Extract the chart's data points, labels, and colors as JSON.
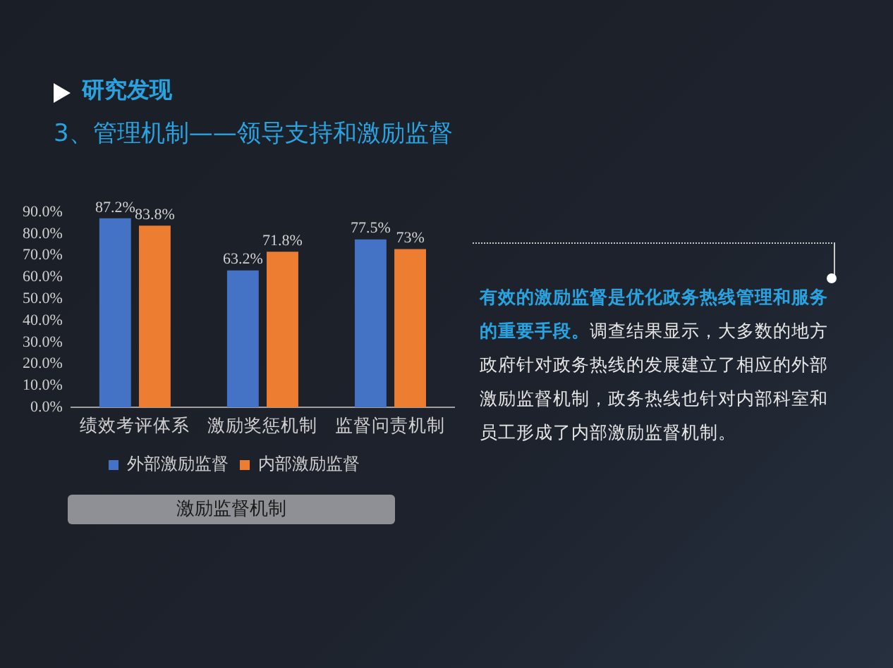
{
  "chart_data": {
    "type": "bar",
    "title": "研究发现",
    "subtitle": "3、管理机制——领导支持和激励监督",
    "xlabel": "激励监督机制",
    "categories": [
      "绩效考评体系",
      "激励奖惩机制",
      "监督问责机制"
    ],
    "series": [
      {
        "name": "外部激励监督",
        "color": "#4472c4",
        "values": [
          87.2,
          63.2,
          77.5
        ],
        "value_labels": [
          "87.2%",
          "63.2%",
          "77.5%"
        ]
      },
      {
        "name": "内部激励监督",
        "color": "#ed7d31",
        "values": [
          83.8,
          71.8,
          73
        ],
        "value_labels": [
          "83.8%",
          "71.8%",
          "73%"
        ]
      }
    ],
    "ylim": [
      0,
      90
    ],
    "yticks": [
      {
        "value": 0,
        "label": "0.0%"
      },
      {
        "value": 10,
        "label": "10.0%"
      },
      {
        "value": 20,
        "label": "20.0%"
      },
      {
        "value": 30,
        "label": "30.0%"
      },
      {
        "value": 40,
        "label": "40.0%"
      },
      {
        "value": 50,
        "label": "50.0%"
      },
      {
        "value": 60,
        "label": "60.0%"
      },
      {
        "value": 70,
        "label": "70.0%"
      },
      {
        "value": 80,
        "label": "80.0%"
      },
      {
        "value": 90,
        "label": "90.0%"
      }
    ],
    "grid": false,
    "legend": "bottom",
    "annotations": [
      "有效的激励监督是优化政务热线管理和服务的重要手段。",
      "调查结果显示，大多数的地方政府针对政务热线的发展建立了相应的外部激励监督机制，政务热线也针对内部科室和员工形成了内部激励监督机制。"
    ]
  }
}
